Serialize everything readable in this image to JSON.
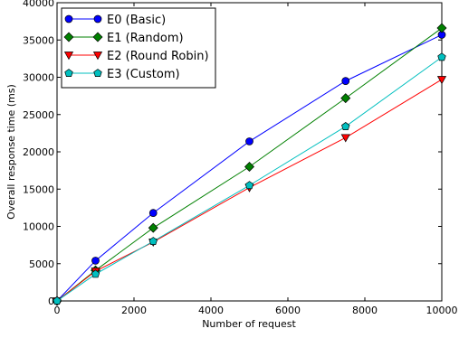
{
  "chart_data": {
    "type": "line",
    "xlabel": "Number of request",
    "ylabel": "Overall response time (ms)",
    "xlim": [
      0,
      10000
    ],
    "ylim": [
      0,
      40000
    ],
    "xticks": [
      0,
      2000,
      4000,
      6000,
      8000,
      10000
    ],
    "yticks": [
      0,
      5000,
      10000,
      15000,
      20000,
      25000,
      30000,
      35000,
      40000
    ],
    "x": [
      0,
      1000,
      2500,
      5000,
      7500,
      10000
    ],
    "grid": false,
    "legend_position": "top-left",
    "series": [
      {
        "name": "E0 (Basic)",
        "color": "#0000ff",
        "marker": "circle",
        "values": [
          0,
          5400,
          11800,
          21400,
          29500,
          35700
        ]
      },
      {
        "name": "E1 (Random)",
        "color": "#008000",
        "marker": "diamond",
        "values": [
          0,
          4100,
          9800,
          18000,
          27200,
          36600
        ]
      },
      {
        "name": "E2 (Round Robin)",
        "color": "#ff0000",
        "marker": "triangle-down",
        "values": [
          0,
          4000,
          7900,
          15200,
          21900,
          29700
        ]
      },
      {
        "name": "E3 (Custom)",
        "color": "#00bfbf",
        "marker": "pentagon",
        "values": [
          0,
          3600,
          8000,
          15500,
          23400,
          32700
        ]
      }
    ]
  }
}
